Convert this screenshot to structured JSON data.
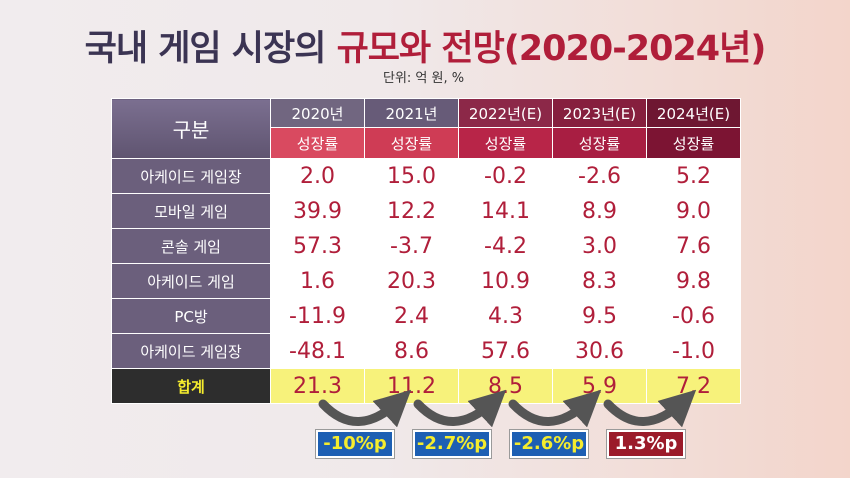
{
  "title": {
    "main": "국내 게임 시장의 ",
    "accent": "규모와 전망(2020-2024년)"
  },
  "unit": "단위: 억 원, %",
  "colors": {
    "header_label_bg": "#6d6280",
    "row_label_bg": "#6b5f7c",
    "value_text": "#b01e3a",
    "total_label_bg": "#2d2d2d",
    "total_label_text": "#f5ec2e",
    "total_row_bg": "#f7f27b",
    "arrow": "#555555",
    "badge_blue": "#1d5fb3",
    "badge_red": "#9b1b2a",
    "year_header_bg": [
      "#716680",
      "#675b78",
      "#8c2848",
      "#861f3e",
      "#6e1732"
    ],
    "sub_header_bg": [
      "#d94a60",
      "#cf3c55",
      "#b82548",
      "#a81e42",
      "#7c1433"
    ]
  },
  "chart_data": {
    "type": "table",
    "header_label": "구분",
    "columns": [
      {
        "year": "2020년",
        "metric": "성장률"
      },
      {
        "year": "2021년",
        "metric": "성장률"
      },
      {
        "year": "2022년(E)",
        "metric": "성장률"
      },
      {
        "year": "2023년(E)",
        "metric": "성장률"
      },
      {
        "year": "2024년(E)",
        "metric": "성장률"
      }
    ],
    "rows": [
      {
        "label": "아케이드 게임장",
        "values": [
          "2.0",
          "15.0",
          "-0.2",
          "-2.6",
          "5.2"
        ]
      },
      {
        "label": "모바일 게임",
        "values": [
          "39.9",
          "12.2",
          "14.1",
          "8.9",
          "9.0"
        ]
      },
      {
        "label": "콘솔 게임",
        "values": [
          "57.3",
          "-3.7",
          "-4.2",
          "3.0",
          "7.6"
        ]
      },
      {
        "label": "아케이드 게임",
        "values": [
          "1.6",
          "20.3",
          "10.9",
          "8.3",
          "9.8"
        ]
      },
      {
        "label": "PC방",
        "values": [
          "-11.9",
          "2.4",
          "4.3",
          "9.5",
          "-0.6"
        ]
      },
      {
        "label": "아케이드 게임장",
        "values": [
          "-48.1",
          "8.6",
          "57.6",
          "30.6",
          "-1.0"
        ]
      }
    ],
    "total": {
      "label": "합계",
      "values": [
        "21.3",
        "11.2",
        "8.5",
        "5.9",
        "7.2"
      ]
    },
    "changes": [
      {
        "text": "-10%p",
        "color": "blue"
      },
      {
        "text": "-2.7%p",
        "color": "blue"
      },
      {
        "text": "-2.6%p",
        "color": "blue"
      },
      {
        "text": "1.3%p",
        "color": "red"
      }
    ]
  }
}
